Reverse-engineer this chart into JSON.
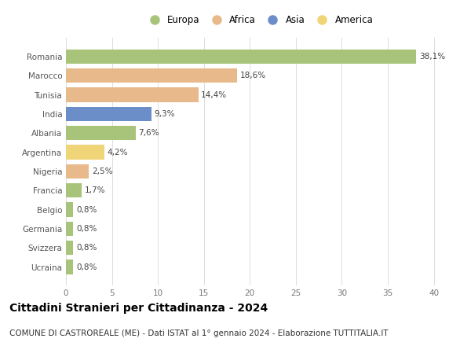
{
  "categories": [
    "Romania",
    "Marocco",
    "Tunisia",
    "India",
    "Albania",
    "Argentina",
    "Nigeria",
    "Francia",
    "Belgio",
    "Germania",
    "Svizzera",
    "Ucraina"
  ],
  "values": [
    38.1,
    18.6,
    14.4,
    9.3,
    7.6,
    4.2,
    2.5,
    1.7,
    0.8,
    0.8,
    0.8,
    0.8
  ],
  "labels": [
    "38,1%",
    "18,6%",
    "14,4%",
    "9,3%",
    "7,6%",
    "4,2%",
    "2,5%",
    "1,7%",
    "0,8%",
    "0,8%",
    "0,8%",
    "0,8%"
  ],
  "continents": [
    "Europa",
    "Africa",
    "Africa",
    "Asia",
    "Europa",
    "America",
    "Africa",
    "Europa",
    "Europa",
    "Europa",
    "Europa",
    "Europa"
  ],
  "colors": {
    "Europa": "#a8c47a",
    "Africa": "#e8b98a",
    "Asia": "#6b8ec8",
    "America": "#f0d478"
  },
  "legend_order": [
    "Europa",
    "Africa",
    "Asia",
    "America"
  ],
  "xlim": [
    0,
    42
  ],
  "xticks": [
    0,
    5,
    10,
    15,
    20,
    25,
    30,
    35,
    40
  ],
  "title": "Cittadini Stranieri per Cittadinanza - 2024",
  "subtitle": "COMUNE DI CASTROREALE (ME) - Dati ISTAT al 1° gennaio 2024 - Elaborazione TUTTITALIA.IT",
  "background_color": "#ffffff",
  "grid_color": "#dddddd",
  "bar_height": 0.75,
  "title_fontsize": 10,
  "subtitle_fontsize": 7.5,
  "label_fontsize": 7.5,
  "tick_fontsize": 7.5,
  "legend_fontsize": 8.5
}
